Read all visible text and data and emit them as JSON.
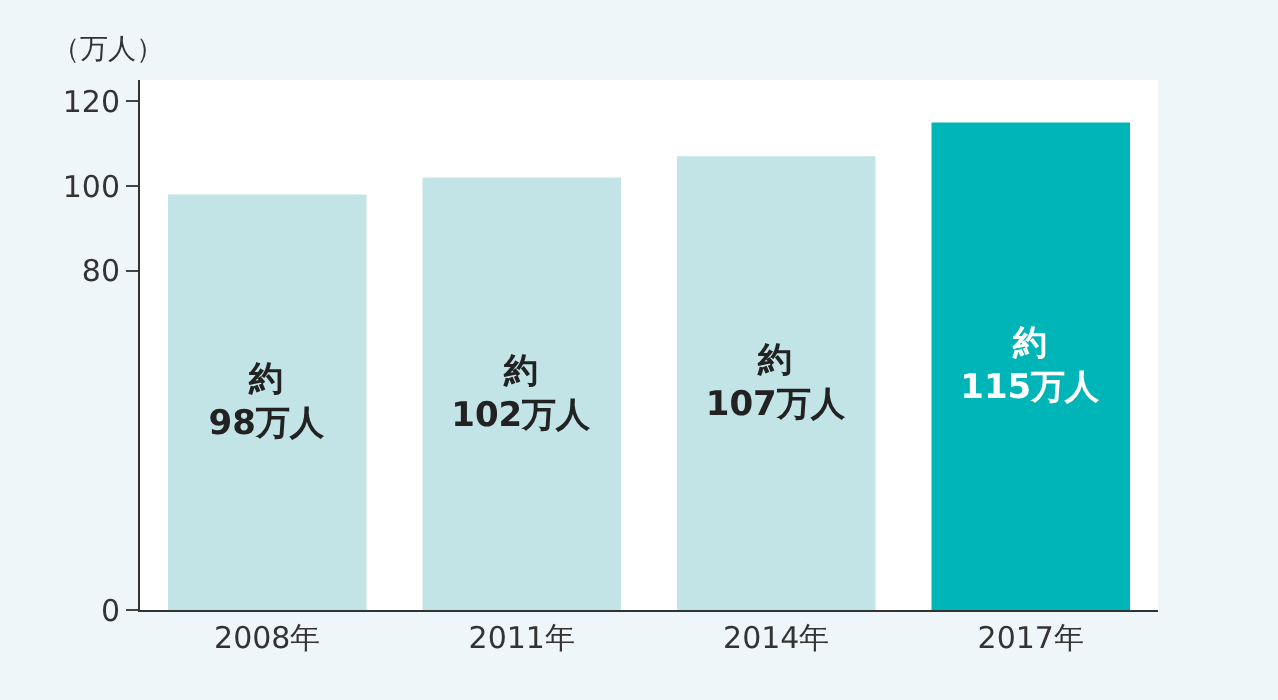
{
  "chart_data": {
    "type": "bar",
    "ylabel": "（万人）",
    "categories": [
      "2008年",
      "2011年",
      "2014年",
      "2017年"
    ],
    "values": [
      98,
      102,
      107,
      115
    ],
    "colors": [
      "#c2e4e6",
      "#c2e4e6",
      "#c2e4e6",
      "#00b5b8"
    ],
    "value_labels": [
      "約\n98万人",
      "約\n102万人",
      "約\n107万人",
      "約\n115万人"
    ],
    "ylim": [
      0,
      125
    ],
    "yticks": [
      0,
      80,
      100,
      120
    ]
  }
}
